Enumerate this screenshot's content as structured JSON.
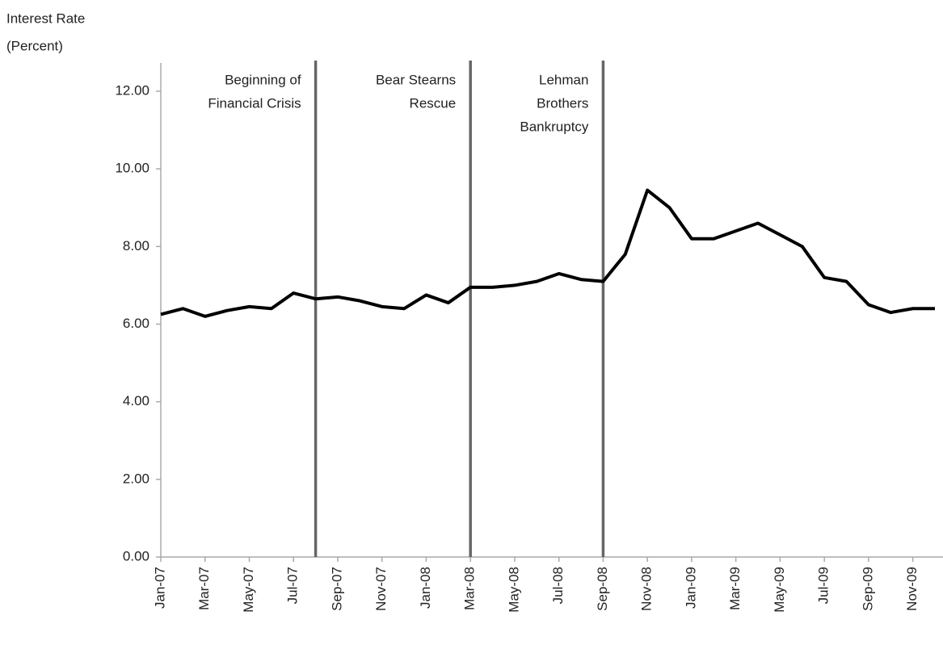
{
  "chart_data": {
    "type": "line",
    "y_label": [
      "Interest Rate",
      "(Percent)"
    ],
    "x": [
      "2007-01",
      "2007-02",
      "2007-03",
      "2007-04",
      "2007-05",
      "2007-06",
      "2007-07",
      "2007-08",
      "2007-09",
      "2007-10",
      "2007-11",
      "2007-12",
      "2008-01",
      "2008-02",
      "2008-03",
      "2008-04",
      "2008-05",
      "2008-06",
      "2008-07",
      "2008-08",
      "2008-09",
      "2008-10",
      "2008-11",
      "2008-12",
      "2009-01",
      "2009-02",
      "2009-03",
      "2009-04",
      "2009-05",
      "2009-06",
      "2009-07",
      "2009-08",
      "2009-09",
      "2009-10",
      "2009-11",
      "2009-12"
    ],
    "values": [
      6.25,
      6.4,
      6.2,
      6.35,
      6.45,
      6.4,
      6.8,
      6.65,
      6.7,
      6.6,
      6.45,
      6.4,
      6.75,
      6.55,
      6.95,
      6.95,
      7.0,
      7.1,
      7.3,
      7.15,
      7.1,
      7.8,
      9.45,
      9.0,
      8.2,
      8.2,
      8.4,
      8.6,
      8.3,
      8.0,
      7.2,
      7.1,
      6.5,
      6.3,
      6.4,
      6.4
    ],
    "color": "#000000",
    "xlim": [
      "2007-01",
      "2009-12"
    ],
    "xticks": [
      {
        "value": "2007-01",
        "label": "Jan-07"
      },
      {
        "value": "2007-03",
        "label": "Mar-07"
      },
      {
        "value": "2007-05",
        "label": "May-07"
      },
      {
        "value": "2007-07",
        "label": "Jul-07"
      },
      {
        "value": "2007-09",
        "label": "Sep-07"
      },
      {
        "value": "2007-11",
        "label": "Nov-07"
      },
      {
        "value": "2008-01",
        "label": "Jan-08"
      },
      {
        "value": "2008-03",
        "label": "Mar-08"
      },
      {
        "value": "2008-05",
        "label": "May-08"
      },
      {
        "value": "2008-07",
        "label": "Jul-08"
      },
      {
        "value": "2008-09",
        "label": "Sep-08"
      },
      {
        "value": "2008-11",
        "label": "Nov-08"
      },
      {
        "value": "2009-01",
        "label": "Jan-09"
      },
      {
        "value": "2009-03",
        "label": "Mar-09"
      },
      {
        "value": "2009-05",
        "label": "May-09"
      },
      {
        "value": "2009-07",
        "label": "Jul-09"
      },
      {
        "value": "2009-09",
        "label": "Sep-09"
      },
      {
        "value": "2009-11",
        "label": "Nov-09"
      }
    ],
    "ylim": [
      0,
      12
    ],
    "yticks": [
      {
        "value": 0,
        "label": "0.00"
      },
      {
        "value": 2,
        "label": "2.00"
      },
      {
        "value": 4,
        "label": "4.00"
      },
      {
        "value": 6,
        "label": "6.00"
      },
      {
        "value": 8,
        "label": "8.00"
      },
      {
        "value": 10,
        "label": "10.00"
      },
      {
        "value": 12,
        "label": "12.00"
      }
    ],
    "grid": false,
    "annotations": [
      {
        "x": "2007-08",
        "text": [
          "Beginning of",
          "Financial Crisis"
        ]
      },
      {
        "x": "2008-03",
        "text": [
          "Bear Stearns",
          "Rescue"
        ]
      },
      {
        "x": "2008-09",
        "text": [
          "Lehman",
          "Brothers",
          "Bankruptcy"
        ]
      }
    ]
  }
}
